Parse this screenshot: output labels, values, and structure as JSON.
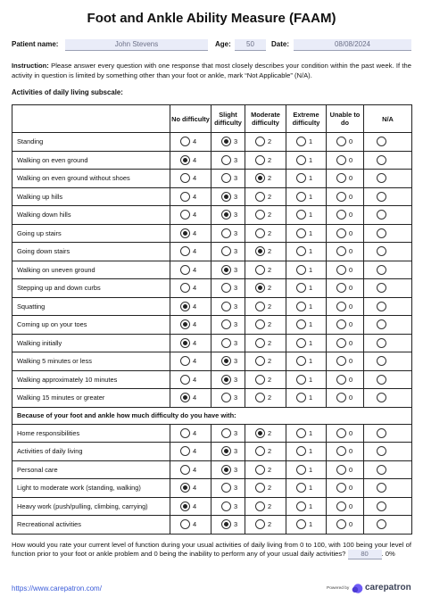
{
  "title": "Foot and Ankle Ability Measure (FAAM)",
  "patient": {
    "name_label": "Patient name:",
    "name_value": "John Stevens",
    "age_label": "Age:",
    "age_value": "50",
    "date_label": "Date:",
    "date_value": "08/08/2024"
  },
  "instruction": {
    "label": "Instruction:",
    "text": "Please answer every question with one response that most closely describes your condition within the past week. If the activity in question is limited by something other than your foot or ankle, mark “Not Applicable” (N/A)."
  },
  "subscale_title": "Activities of daily living subscale:",
  "columns": [
    "No difficulty",
    "Slight difficulty",
    "Moderate difficulty",
    "Extreme difficulty",
    "Unable to do",
    "N/A"
  ],
  "scores": [
    "4",
    "3",
    "2",
    "1",
    "0",
    ""
  ],
  "section1_rows": [
    {
      "label": "Standing",
      "selected": "3"
    },
    {
      "label": "Walking on even ground",
      "selected": "4"
    },
    {
      "label": "Walking on even ground without shoes",
      "selected": "2"
    },
    {
      "label": "Walking up hills",
      "selected": "3"
    },
    {
      "label": "Walking down hills",
      "selected": "3"
    },
    {
      "label": "Going up stairs",
      "selected": "4"
    },
    {
      "label": "Going down stairs",
      "selected": "2"
    },
    {
      "label": "Walking on uneven ground",
      "selected": "3"
    },
    {
      "label": "Stepping up and down curbs",
      "selected": "2"
    },
    {
      "label": "Squatting",
      "selected": "4"
    },
    {
      "label": "Coming up on your toes",
      "selected": "4"
    },
    {
      "label": "Walking initially",
      "selected": "4"
    },
    {
      "label": "Walking 5 minutes or less",
      "selected": "3"
    },
    {
      "label": "Walking approximately 10 minutes",
      "selected": "3"
    },
    {
      "label": "Walking 15 minutes or greater",
      "selected": "4"
    }
  ],
  "section2_title": "Because of your foot and ankle how much difficulty do you have with:",
  "section2_rows": [
    {
      "label": "Home responsibilities",
      "selected": "2"
    },
    {
      "label": "Activities of daily living",
      "selected": "3"
    },
    {
      "label": "Personal care",
      "selected": "3"
    },
    {
      "label": "Light to moderate work (standing, walking)",
      "selected": "4"
    },
    {
      "label": "Heavy work (push/pulling, climbing, carrying)",
      "selected": "4"
    },
    {
      "label": "Recreational activities",
      "selected": "3"
    }
  ],
  "rating_question": "How would you rate your current level of function during your usual activities of daily living from 0 to 100, with 100 being your level of function prior to your foot or ankle problem and 0 being the inability to perform any of your usual daily activities?",
  "rating_value": "80",
  "rating_suffix": ". 0%",
  "footer_link": "https://www.carepatron.com/",
  "powered_by": "Powered by",
  "brand_name": "carepatron",
  "brand_color": "#6f5cf6"
}
